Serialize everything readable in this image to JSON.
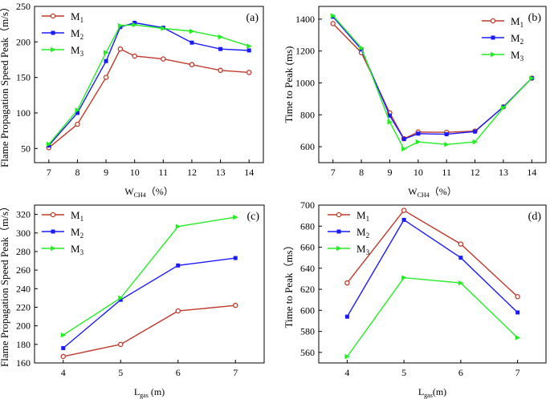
{
  "chart_data": [
    {
      "type": "line",
      "panel_label": "(a)",
      "ylabel": "Flame Propagation Speed Peak（m/s）",
      "xlabel_main": "W",
      "xlabel_sub": "CH4",
      "xlabel_suffix": "（%）",
      "x": [
        7,
        8,
        9,
        9.5,
        10,
        11,
        12,
        13,
        14
      ],
      "xticks": [
        7,
        8,
        9,
        10,
        11,
        12,
        13,
        14
      ],
      "yticks": [
        50,
        100,
        150,
        200,
        250
      ],
      "xlim": [
        6.5,
        14.5
      ],
      "ylim": [
        30,
        250
      ],
      "legend_position": "top-left",
      "series": [
        {
          "name": "M",
          "sub": "1",
          "color": "#c0392b",
          "marker": "circle",
          "values": [
            51,
            84,
            150,
            190,
            180,
            176,
            168,
            160,
            157
          ]
        },
        {
          "name": "M",
          "sub": "2",
          "color": "#1a1aff",
          "marker": "square",
          "values": [
            54,
            100,
            173,
            221,
            227,
            220,
            199,
            190,
            188
          ]
        },
        {
          "name": "M",
          "sub": "3",
          "color": "#22ee22",
          "marker": "triangle",
          "values": [
            56,
            104,
            185,
            223,
            224,
            219,
            215,
            207,
            194
          ]
        }
      ]
    },
    {
      "type": "line",
      "panel_label": "(b)",
      "ylabel": "Time to Peak (ms)",
      "xlabel_main": "W",
      "xlabel_sub": "CH4",
      "xlabel_suffix": "（%）",
      "x": [
        7,
        8,
        9,
        9.5,
        10,
        11,
        12,
        13,
        14
      ],
      "xticks": [
        7,
        8,
        9,
        10,
        11,
        12,
        13,
        14
      ],
      "yticks": [
        600,
        800,
        1000,
        1200,
        1400
      ],
      "xlim": [
        6.5,
        14.5
      ],
      "ylim": [
        500,
        1480
      ],
      "legend_position": "top-right",
      "series": [
        {
          "name": "M",
          "sub": "1",
          "color": "#c0392b",
          "marker": "circle",
          "values": [
            1372,
            1190,
            812,
            650,
            692,
            690,
            698,
            850,
            1030
          ]
        },
        {
          "name": "M",
          "sub": "2",
          "color": "#1a1aff",
          "marker": "square",
          "values": [
            1415,
            1210,
            795,
            648,
            682,
            678,
            695,
            850,
            1030
          ]
        },
        {
          "name": "M",
          "sub": "3",
          "color": "#22ee22",
          "marker": "triangle",
          "values": [
            1422,
            1220,
            755,
            586,
            630,
            614,
            630,
            845,
            1030
          ]
        }
      ]
    },
    {
      "type": "line",
      "panel_label": "(c)",
      "ylabel": "Flame Propagation Speed Peak（m/s）",
      "xlabel_main": "L",
      "xlabel_sub": "gas",
      "xlabel_suffix": " (m)",
      "x": [
        4,
        5,
        6,
        7
      ],
      "xticks": [
        4,
        5,
        6,
        7
      ],
      "yticks": [
        160,
        180,
        200,
        220,
        240,
        260,
        280,
        300,
        320
      ],
      "xlim": [
        3.5,
        7.5
      ],
      "ylim": [
        160,
        330
      ],
      "legend_position": "top-left",
      "series": [
        {
          "name": "M",
          "sub": "1",
          "color": "#c0392b",
          "marker": "circle",
          "values": [
            167,
            180,
            216,
            222
          ]
        },
        {
          "name": "M",
          "sub": "2",
          "color": "#1a1aff",
          "marker": "square",
          "values": [
            176,
            228,
            265,
            273
          ]
        },
        {
          "name": "M",
          "sub": "3",
          "color": "#22ee22",
          "marker": "triangle",
          "values": [
            190,
            230,
            307,
            317
          ]
        }
      ]
    },
    {
      "type": "line",
      "panel_label": "(d)",
      "ylabel": "Time to Peak（ms）",
      "xlabel_main": "L",
      "xlabel_sub": "gas",
      "xlabel_suffix": "(m)",
      "x": [
        4,
        5,
        6,
        7
      ],
      "xticks": [
        4,
        5,
        6,
        7
      ],
      "yticks": [
        560,
        580,
        600,
        620,
        640,
        660,
        680,
        700
      ],
      "xlim": [
        3.5,
        7.5
      ],
      "ylim": [
        550,
        700
      ],
      "legend_position": "top-left",
      "series": [
        {
          "name": "M",
          "sub": "1",
          "color": "#c0392b",
          "marker": "circle",
          "values": [
            626,
            695,
            663,
            613
          ]
        },
        {
          "name": "M",
          "sub": "2",
          "color": "#1a1aff",
          "marker": "square",
          "values": [
            594,
            686,
            650,
            598
          ]
        },
        {
          "name": "M",
          "sub": "3",
          "color": "#22ee22",
          "marker": "triangle",
          "values": [
            556,
            631,
            626,
            574
          ]
        }
      ]
    }
  ]
}
